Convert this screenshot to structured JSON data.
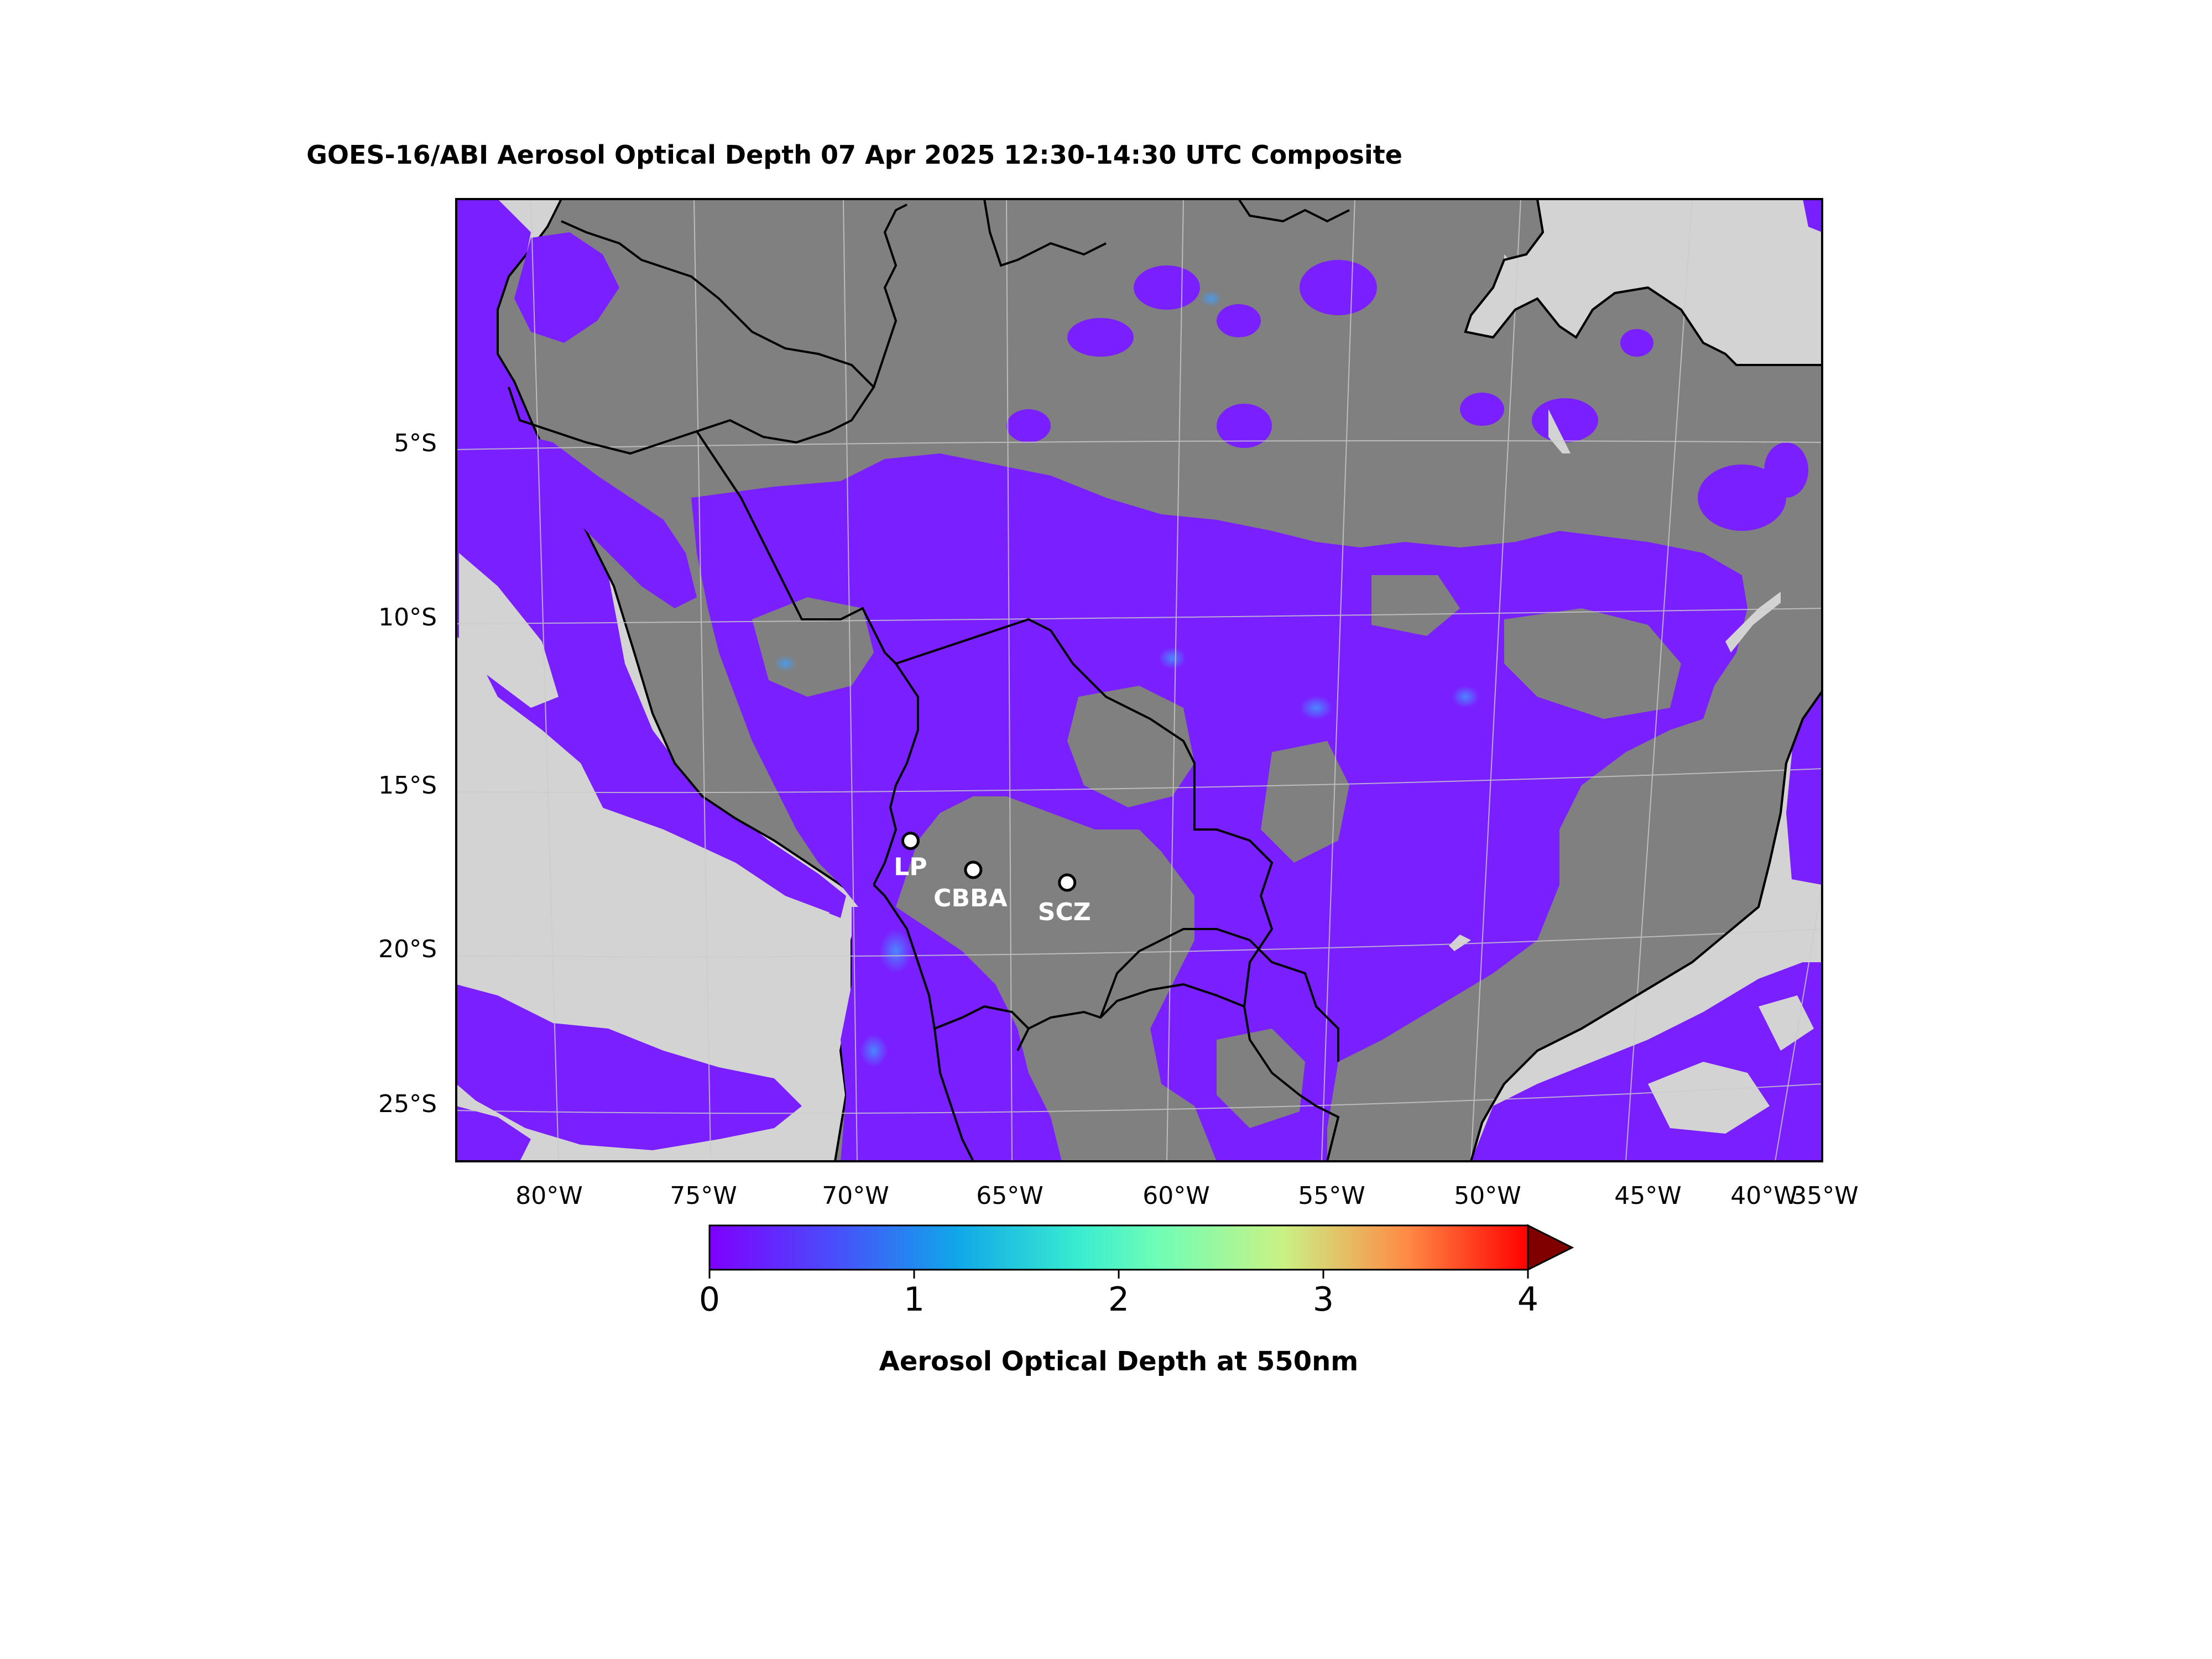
{
  "title": "GOES-16/ABI Aerosol Optical Depth  07 Apr 2025  12:30-14:30 UTC Composite",
  "map": {
    "lat_labels": [
      "5°S",
      "10°S",
      "15°S",
      "20°S",
      "25°S"
    ],
    "lon_labels": [
      "80°W",
      "75°W",
      "70°W",
      "65°W",
      "60°W",
      "55°W",
      "50°W",
      "45°W",
      "40°W",
      "35°W"
    ],
    "colors": {
      "no_data_land": "#808080",
      "no_data_ocean": "#d3d3d3",
      "low_aod": "#7a1fff",
      "border": "#000000",
      "gridline": "#cccccc"
    },
    "cities": [
      {
        "label": "LP",
        "lon": -68.15,
        "lat": -16.5
      },
      {
        "label": "CBBA",
        "lon": -66.16,
        "lat": -17.39
      },
      {
        "label": "SCZ",
        "lon": -63.18,
        "lat": -17.78
      }
    ]
  },
  "colorbar": {
    "label": "Aerosol Optical Depth at 550nm",
    "ticks": [
      "0",
      "1",
      "2",
      "3",
      "4"
    ],
    "min": 0,
    "max": 4,
    "extend": "max",
    "colormap": "rainbow",
    "over_color": "#800000"
  }
}
